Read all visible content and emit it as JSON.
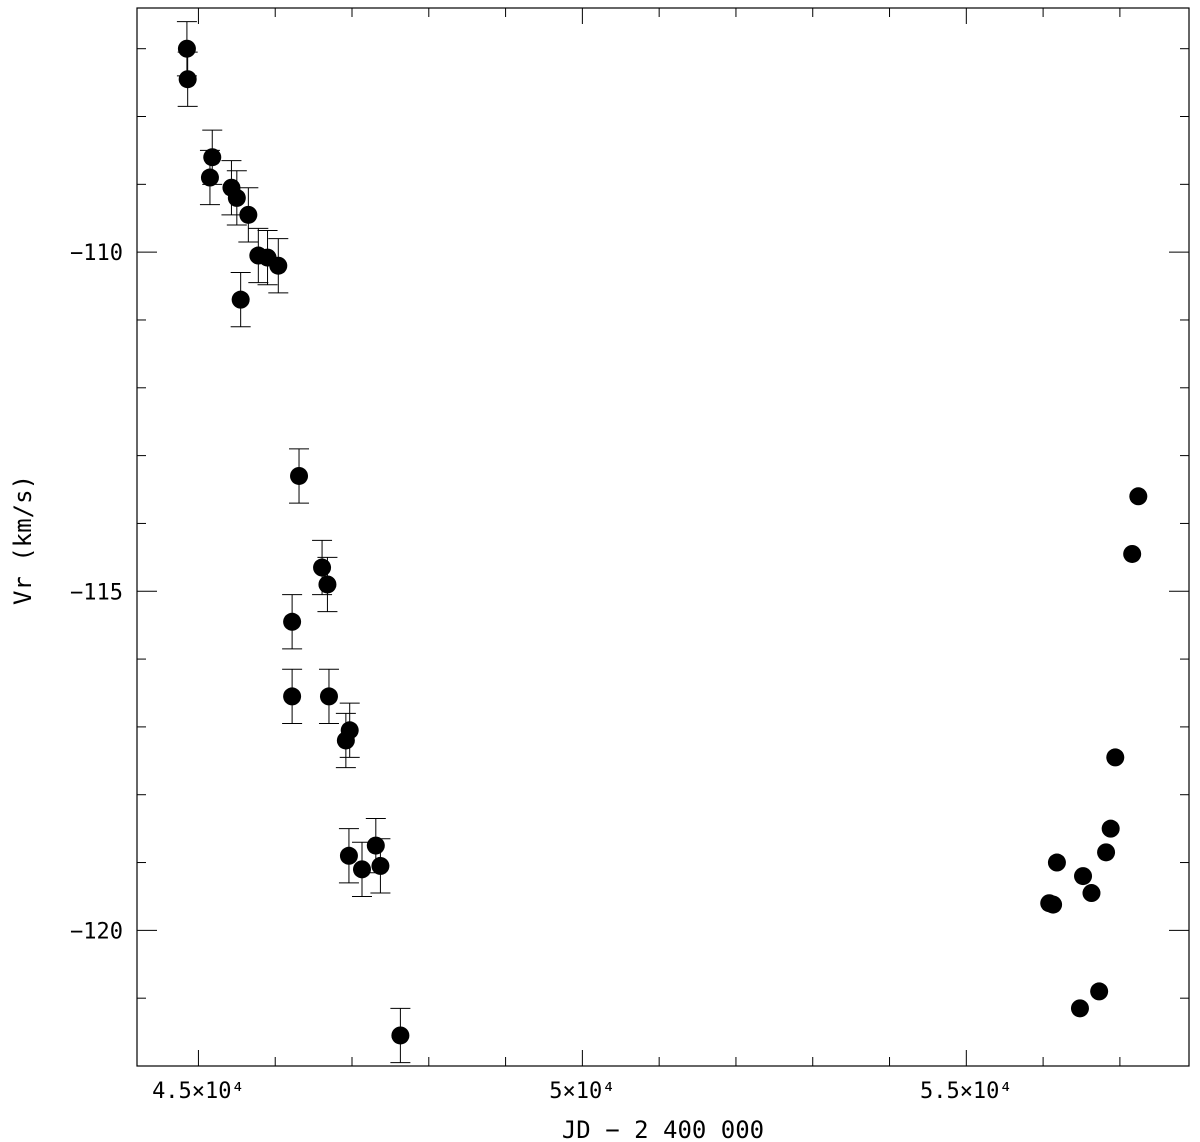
{
  "chart_data": {
    "type": "scatter",
    "xlabel": "JD − 2 400 000",
    "ylabel": "Vr (km/s)",
    "xlim": [
      44200,
      57900
    ],
    "ylim": [
      -122.0,
      -106.4
    ],
    "y_inverted": true,
    "grid": false,
    "x_ticks": [
      {
        "value": 45000,
        "label": "4.5×10⁴"
      },
      {
        "value": 50000,
        "label": "5×10⁴"
      },
      {
        "value": 55000,
        "label": "5.5×10⁴"
      }
    ],
    "y_ticks": [
      {
        "value": -110,
        "label": "−110"
      },
      {
        "value": -115,
        "label": "−115"
      },
      {
        "value": -120,
        "label": "−120"
      }
    ],
    "x_minor_step": 1000,
    "y_minor_step": 1,
    "points": [
      {
        "x": 44850,
        "y": -107.0,
        "err": 0.4
      },
      {
        "x": 44860,
        "y": -107.45,
        "err": 0.4
      },
      {
        "x": 45150,
        "y": -108.9,
        "err": 0.4
      },
      {
        "x": 45180,
        "y": -108.6,
        "err": 0.4
      },
      {
        "x": 45430,
        "y": -109.05,
        "err": 0.4
      },
      {
        "x": 45500,
        "y": -109.2,
        "err": 0.4
      },
      {
        "x": 45550,
        "y": -110.7,
        "err": 0.4
      },
      {
        "x": 45650,
        "y": -109.45,
        "err": 0.4
      },
      {
        "x": 45780,
        "y": -110.05,
        "err": 0.4
      },
      {
        "x": 45900,
        "y": -110.08,
        "err": 0.4
      },
      {
        "x": 46040,
        "y": -110.2,
        "err": 0.4
      },
      {
        "x": 46220,
        "y": -115.45,
        "err": 0.4
      },
      {
        "x": 46220,
        "y": -116.55,
        "err": 0.4
      },
      {
        "x": 46310,
        "y": -113.3,
        "err": 0.4
      },
      {
        "x": 46610,
        "y": -114.65,
        "err": 0.4
      },
      {
        "x": 46680,
        "y": -114.9,
        "err": 0.4
      },
      {
        "x": 46700,
        "y": -116.55,
        "err": 0.4
      },
      {
        "x": 46920,
        "y": -117.2,
        "err": 0.4
      },
      {
        "x": 46970,
        "y": -117.05,
        "err": 0.4
      },
      {
        "x": 46960,
        "y": -118.9,
        "err": 0.4
      },
      {
        "x": 47130,
        "y": -119.1,
        "err": 0.4
      },
      {
        "x": 47310,
        "y": -118.75,
        "err": 0.4
      },
      {
        "x": 47370,
        "y": -119.05,
        "err": 0.4
      },
      {
        "x": 47630,
        "y": -121.55,
        "err": 0.4
      },
      {
        "x": 56080,
        "y": -119.6
      },
      {
        "x": 56130,
        "y": -119.62
      },
      {
        "x": 56180,
        "y": -119.0
      },
      {
        "x": 56480,
        "y": -121.15
      },
      {
        "x": 56520,
        "y": -119.2
      },
      {
        "x": 56630,
        "y": -119.45
      },
      {
        "x": 56730,
        "y": -120.9
      },
      {
        "x": 56820,
        "y": -118.85
      },
      {
        "x": 56880,
        "y": -118.5
      },
      {
        "x": 56940,
        "y": -117.45
      },
      {
        "x": 57160,
        "y": -114.45
      },
      {
        "x": 57240,
        "y": -113.6
      }
    ]
  }
}
